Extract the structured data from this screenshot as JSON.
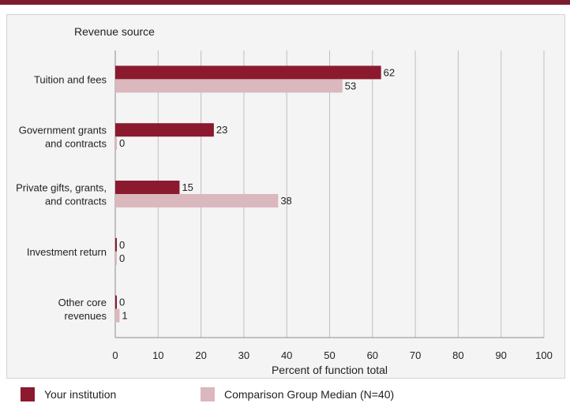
{
  "colors": {
    "accent": "#7b1c2c",
    "your_institution": "#8b1a2e",
    "comparison": "#dbb7be"
  },
  "legend": {
    "your_institution": "Your institution",
    "comparison": "Comparison Group Median (N=40)"
  },
  "chart_data": {
    "type": "bar",
    "orientation": "horizontal",
    "title": "",
    "category_axis_title": "Revenue source",
    "xlabel": "Percent of function total",
    "xlim": [
      0,
      100
    ],
    "xticks": [
      0,
      10,
      20,
      30,
      40,
      50,
      60,
      70,
      80,
      90,
      100
    ],
    "grid": true,
    "legend_placement": "bottom",
    "categories": [
      [
        "Tuition and fees"
      ],
      [
        "Government grants",
        "and contracts"
      ],
      [
        "Private gifts, grants,",
        "and contracts"
      ],
      [
        "Investment return"
      ],
      [
        "Other core",
        "revenues"
      ]
    ],
    "series": [
      {
        "name": "Your institution",
        "values": [
          62,
          23,
          15,
          0,
          0
        ]
      },
      {
        "name": "Comparison Group Median (N=40)",
        "values": [
          53,
          0,
          38,
          0,
          1
        ]
      }
    ]
  }
}
